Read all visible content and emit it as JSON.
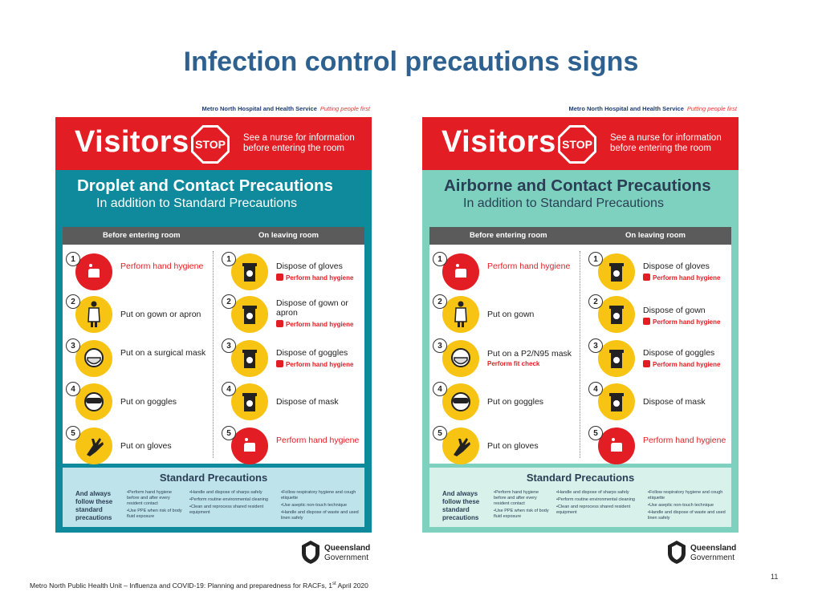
{
  "slide": {
    "title": "Infection control precautions signs",
    "page_number": "11",
    "footer_prefix": "Metro North Public Health Unit – Influenza and COVID-19: Planning and preparedness for RACFs, 1",
    "footer_sup": "st",
    "footer_suffix": " April 2020"
  },
  "colors": {
    "title": "#2e6190",
    "red": "#e31d24",
    "yellow": "#f7c413",
    "teal": "#0f8a9d",
    "mint": "#7fd1bf"
  },
  "posters": [
    {
      "org": "Metro North Hospital and Health Service",
      "tagline": "Putting people first",
      "visitors": "Visitors",
      "stop": "STOP",
      "nurse_note": "See a nurse for information before entering the room",
      "heading": "Droplet and Contact Precautions",
      "subheading": "In addition to Standard Precautions",
      "before_header": "Before entering room",
      "after_header": "On leaving room",
      "before_steps": [
        {
          "num": "1",
          "label": "Perform hand hygiene",
          "icon": "hand-hygiene-icon"
        },
        {
          "num": "2",
          "label": "Put on gown or apron",
          "icon": "gown-icon"
        },
        {
          "num": "3",
          "label": "Put on a surgical mask",
          "icon": "mask-icon"
        },
        {
          "num": "4",
          "label": "Put on goggles",
          "icon": "goggles-icon"
        },
        {
          "num": "5",
          "label": "Put on gloves",
          "icon": "gloves-icon"
        }
      ],
      "after_steps": [
        {
          "num": "1",
          "label": "Dispose of gloves",
          "sub": "Perform hand hygiene",
          "icon": "bin-icon"
        },
        {
          "num": "2",
          "label": "Dispose of gown or apron",
          "sub": "Perform hand hygiene",
          "icon": "bin-icon"
        },
        {
          "num": "3",
          "label": "Dispose of goggles",
          "sub": "Perform hand hygiene",
          "icon": "bin-icon"
        },
        {
          "num": "4",
          "label": "Dispose of mask",
          "icon": "bin-icon"
        },
        {
          "num": "5",
          "label": "Perform hand hygiene",
          "icon": "hand-hygiene-icon"
        }
      ],
      "std_title": "Standard Precautions",
      "std_always": "And always follow these standard precautions",
      "std_col1": [
        "Perform hand hygiene before and after every resident contact",
        "Use PPE when risk of body fluid exposure"
      ],
      "std_col2": [
        "Handle and dispose of sharps safely",
        "Perform routine environmental cleaning",
        "Clean and reprocess shared resident equipment"
      ],
      "std_col3": [
        "Follow respiratory hygiene and cough etiquette",
        "Use aseptic non-touch technique",
        "Handle and dispose of waste and used linen safely"
      ]
    },
    {
      "org": "Metro North Hospital and Health Service",
      "tagline": "Putting people first",
      "visitors": "Visitors",
      "stop": "STOP",
      "nurse_note": "See a nurse for information before entering the room",
      "heading": "Airborne and Contact Precautions",
      "subheading": "In addition to Standard Precautions",
      "before_header": "Before entering room",
      "after_header": "On leaving room",
      "before_steps": [
        {
          "num": "1",
          "label": "Perform hand hygiene",
          "icon": "hand-hygiene-icon"
        },
        {
          "num": "2",
          "label": "Put on gown",
          "icon": "gown-icon"
        },
        {
          "num": "3",
          "label": "Put on a P2/N95 mask",
          "sub": "Perform fit check",
          "icon": "mask-icon"
        },
        {
          "num": "4",
          "label": "Put on goggles",
          "icon": "goggles-icon"
        },
        {
          "num": "5",
          "label": "Put on gloves",
          "icon": "gloves-icon"
        }
      ],
      "after_steps": [
        {
          "num": "1",
          "label": "Dispose of gloves",
          "sub": "Perform hand hygiene",
          "icon": "bin-icon"
        },
        {
          "num": "2",
          "label": "Dispose of gown",
          "sub": "Perform hand hygiene",
          "icon": "bin-icon"
        },
        {
          "num": "3",
          "label": "Dispose of goggles",
          "sub": "Perform hand hygiene",
          "icon": "bin-icon"
        },
        {
          "num": "4",
          "label": "Dispose of mask",
          "icon": "bin-icon"
        },
        {
          "num": "5",
          "label": "Perform hand hygiene",
          "icon": "hand-hygiene-icon"
        }
      ],
      "std_title": "Standard Precautions",
      "std_always": "And always follow these standard precautions",
      "std_col1": [
        "Perform hand hygiene before and after every resident contact",
        "Use PPE when risk of body fluid exposure"
      ],
      "std_col2": [
        "Handle and dispose of sharps safely",
        "Perform routine environmental cleaning",
        "Clean and reprocess shared resident equipment"
      ],
      "std_col3": [
        "Follow respiratory hygiene and cough etiquette",
        "Use aseptic non-touch technique",
        "Handle and dispose of waste and used linen safely"
      ]
    }
  ],
  "logo": {
    "line1": "Queensland",
    "line2": "Government"
  }
}
